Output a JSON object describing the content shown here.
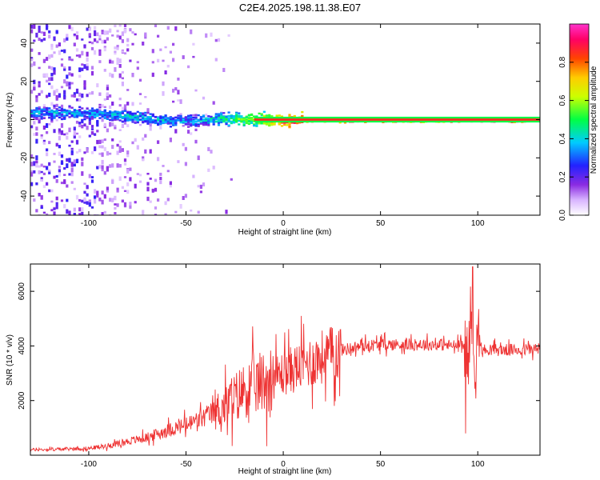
{
  "chart_data": [
    {
      "type": "heatmap",
      "title": "C2E4.2025.198.11.38.E07",
      "xlabel": "Height of straight line (km)",
      "ylabel": "Frequency (Hz)",
      "xlim": [
        -130,
        132
      ],
      "ylim": [
        -50,
        50
      ],
      "xticks": [
        -100,
        -50,
        0,
        50,
        100
      ],
      "yticks": [
        -40,
        -20,
        0,
        20,
        40
      ],
      "colorbar": {
        "label": "Normalized spectral amplitude",
        "range": [
          0,
          1
        ],
        "ticks": [
          "0.0",
          "0.2",
          "0.4",
          "0.6",
          "0.8"
        ],
        "colormap": "rainbow (white -> purple -> blue -> cyan -> green -> yellow -> orange -> red -> magenta)"
      },
      "ridge": [
        {
          "x": -105,
          "f": 4,
          "amp": 0.35
        },
        {
          "x": -90,
          "f": 3,
          "amp": 0.35
        },
        {
          "x": -75,
          "f": 2,
          "amp": 0.4
        },
        {
          "x": -60,
          "f": 0,
          "amp": 0.35
        },
        {
          "x": -45,
          "f": 0,
          "amp": 0.35
        },
        {
          "x": -30,
          "f": 1,
          "amp": 0.45
        },
        {
          "x": -15,
          "f": 0.5,
          "amp": 0.6
        },
        {
          "x": 0,
          "f": 0,
          "amp": 0.85
        },
        {
          "x": 25,
          "f": 0,
          "amp": 0.95
        },
        {
          "x": 50,
          "f": 0,
          "amp": 0.9
        },
        {
          "x": 75,
          "f": 0,
          "amp": 0.8
        },
        {
          "x": 100,
          "f": 0,
          "amp": 0.95
        },
        {
          "x": 130,
          "f": 0,
          "amp": 0.95
        }
      ],
      "grid": false
    },
    {
      "type": "line",
      "title": "",
      "xlabel": "Height of straight line (km)",
      "ylabel": "SNR (10 * v/v)",
      "xlim": [
        -130,
        132
      ],
      "ylim": [
        0,
        7000
      ],
      "xticks": [
        -100,
        -50,
        0,
        50,
        100
      ],
      "yticks": [
        2000,
        4000,
        6000
      ],
      "color": "#ee3333",
      "series": [
        {
          "x": [
            -130,
            -120,
            -110,
            -100,
            -90,
            -80,
            -70,
            -60,
            -50,
            -40,
            -30,
            -25,
            -20,
            -10,
            0,
            10,
            20,
            30,
            40,
            50,
            60,
            70,
            80,
            90,
            93,
            95,
            97,
            99,
            100,
            102,
            105,
            110,
            120,
            132
          ],
          "y": [
            200,
            210,
            230,
            250,
            350,
            500,
            650,
            900,
            1100,
            1400,
            1800,
            2100,
            2400,
            2700,
            3000,
            3300,
            3600,
            3850,
            4000,
            4050,
            4050,
            4050,
            4050,
            4000,
            4000,
            3500,
            5000,
            3000,
            4800,
            3800,
            3900,
            3850,
            3850,
            3900
          ]
        }
      ],
      "grid": false
    }
  ]
}
